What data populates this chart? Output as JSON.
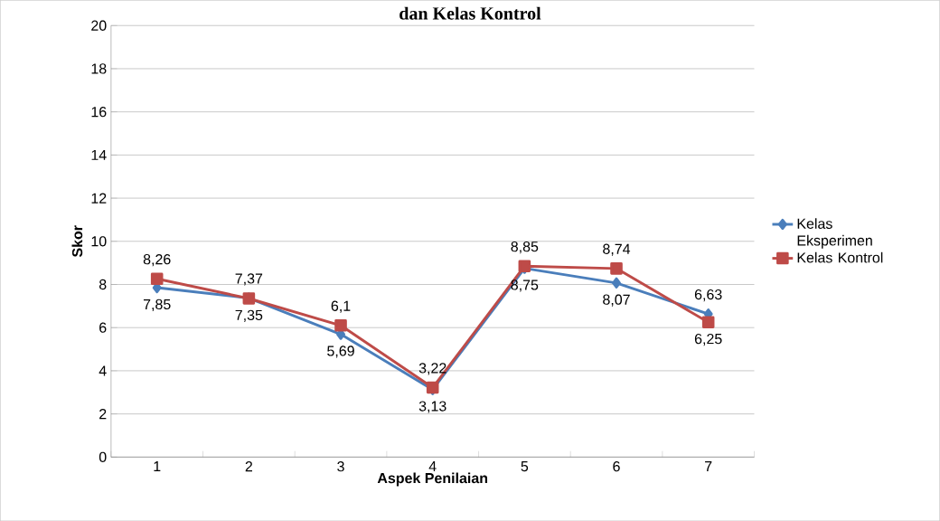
{
  "chart_data": {
    "type": "line",
    "title": "dan Kelas Kontrol",
    "xlabel": "Aspek Penilaian",
    "ylabel": "Skor",
    "categories": [
      "1",
      "2",
      "3",
      "4",
      "5",
      "6",
      "7"
    ],
    "series": [
      {
        "name": "Kelas Eksperimen",
        "color": "#4a7ebb",
        "marker": "diamond",
        "values": [
          7.85,
          7.37,
          5.69,
          3.13,
          8.75,
          8.07,
          6.63
        ],
        "value_labels": [
          "7,85",
          "7,37",
          "5,69",
          "3,13",
          "8,75",
          "8,07",
          "6,63"
        ]
      },
      {
        "name": "Kelas Kontrol",
        "color": "#be4b48",
        "marker": "square",
        "values": [
          8.26,
          7.35,
          6.1,
          3.22,
          8.85,
          8.74,
          6.25
        ],
        "value_labels": [
          "8,26",
          "7,35",
          "6,1",
          "3,22",
          "8,85",
          "8,74",
          "6,25"
        ]
      }
    ],
    "ylim": [
      0,
      20
    ],
    "yticks": [
      0,
      2,
      4,
      6,
      8,
      10,
      12,
      14,
      16,
      18,
      20
    ],
    "grid": "y",
    "legend": "right"
  }
}
